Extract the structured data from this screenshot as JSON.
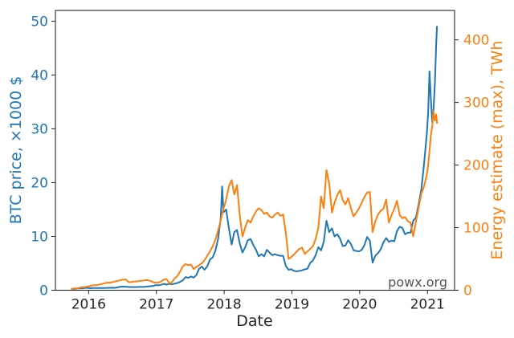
{
  "chart_data": {
    "type": "line",
    "title": "",
    "xlabel": "Date",
    "watermark": "powx.org",
    "grid": false,
    "legend": "none",
    "xlim": [
      2015.51,
      2021.4
    ],
    "x_ticks": [
      2016,
      2017,
      2018,
      2019,
      2020,
      2021
    ],
    "left_axis": {
      "label": "BTC price, ×1000 $",
      "color": "#1f77b4",
      "ticks": [
        0,
        10,
        20,
        30,
        40,
        50
      ],
      "range": [
        0,
        52
      ]
    },
    "right_axis": {
      "label": "Energy estimate (max), TWh",
      "color": "#ff7f0e",
      "ticks": [
        0,
        100,
        200,
        300,
        400
      ],
      "range": [
        0,
        447
      ]
    },
    "tick_color": "#262626",
    "x": [
      2015.75,
      2015.79,
      2015.83,
      2015.87,
      2015.91,
      2015.95,
      2015.99,
      2016.03,
      2016.07,
      2016.11,
      2016.15,
      2016.19,
      2016.23,
      2016.27,
      2016.31,
      2016.35,
      2016.39,
      2016.43,
      2016.47,
      2016.51,
      2016.55,
      2016.59,
      2016.63,
      2016.67,
      2016.71,
      2016.75,
      2016.79,
      2016.83,
      2016.87,
      2016.91,
      2016.95,
      2016.99,
      2017.03,
      2017.07,
      2017.11,
      2017.15,
      2017.19,
      2017.23,
      2017.27,
      2017.31,
      2017.35,
      2017.39,
      2017.43,
      2017.47,
      2017.51,
      2017.55,
      2017.59,
      2017.63,
      2017.67,
      2017.71,
      2017.75,
      2017.79,
      2017.83,
      2017.87,
      2017.91,
      2017.95,
      2017.97,
      2017.99,
      2018.03,
      2018.07,
      2018.11,
      2018.15,
      2018.19,
      2018.23,
      2018.27,
      2018.31,
      2018.35,
      2018.39,
      2018.43,
      2018.47,
      2018.51,
      2018.55,
      2018.59,
      2018.63,
      2018.67,
      2018.71,
      2018.75,
      2018.79,
      2018.83,
      2018.87,
      2018.91,
      2018.95,
      2018.99,
      2019.03,
      2019.07,
      2019.11,
      2019.15,
      2019.19,
      2019.23,
      2019.27,
      2019.31,
      2019.35,
      2019.39,
      2019.43,
      2019.47,
      2019.51,
      2019.55,
      2019.59,
      2019.63,
      2019.67,
      2019.71,
      2019.75,
      2019.79,
      2019.83,
      2019.87,
      2019.91,
      2019.95,
      2019.99,
      2020.03,
      2020.07,
      2020.11,
      2020.15,
      2020.19,
      2020.23,
      2020.27,
      2020.31,
      2020.35,
      2020.39,
      2020.43,
      2020.47,
      2020.51,
      2020.55,
      2020.59,
      2020.63,
      2020.67,
      2020.71,
      2020.75,
      2020.79,
      2020.83,
      2020.87,
      2020.91,
      2020.95,
      2020.99,
      2021.01,
      2021.03,
      2021.05,
      2021.07,
      2021.09,
      2021.11,
      2021.13,
      2021.14
    ],
    "series": [
      {
        "name": "BTC price, ×1000 $",
        "axis": "left",
        "color": "#1f77b4",
        "values": [
          0.24,
          0.26,
          0.31,
          0.38,
          0.35,
          0.43,
          0.43,
          0.38,
          0.4,
          0.42,
          0.41,
          0.42,
          0.42,
          0.44,
          0.45,
          0.46,
          0.45,
          0.53,
          0.66,
          0.67,
          0.66,
          0.6,
          0.59,
          0.58,
          0.59,
          0.61,
          0.61,
          0.64,
          0.71,
          0.74,
          0.78,
          0.96,
          0.91,
          1.02,
          1.18,
          1.05,
          1.2,
          1.1,
          1.22,
          1.35,
          1.55,
          1.85,
          2.45,
          2.3,
          2.55,
          2.35,
          2.8,
          4.0,
          4.4,
          3.8,
          4.4,
          5.7,
          6.1,
          7.3,
          9.5,
          13.5,
          19.3,
          14.5,
          15.0,
          11.5,
          8.5,
          10.8,
          11.2,
          8.7,
          7.0,
          8.0,
          9.3,
          9.5,
          8.4,
          7.5,
          6.3,
          6.7,
          6.3,
          7.5,
          7.0,
          6.5,
          6.7,
          6.5,
          6.4,
          6.4,
          4.5,
          3.8,
          3.9,
          3.6,
          3.5,
          3.6,
          3.7,
          3.9,
          4.0,
          5.1,
          5.5,
          6.5,
          8.0,
          7.4,
          9.0,
          12.9,
          10.8,
          11.5,
          10.0,
          10.4,
          9.6,
          8.2,
          8.3,
          9.3,
          8.6,
          7.4,
          7.3,
          7.2,
          7.5,
          8.4,
          9.9,
          9.2,
          5.1,
          6.4,
          6.9,
          7.6,
          8.9,
          9.7,
          9.0,
          9.2,
          9.1,
          11.0,
          11.8,
          11.6,
          10.4,
          10.7,
          10.7,
          12.9,
          13.5,
          16.0,
          18.8,
          23.5,
          29.0,
          33.0,
          40.7,
          35.5,
          31.2,
          33.5,
          38.5,
          46.0,
          49.0
        ]
      },
      {
        "name": "Energy estimate (max), TWh",
        "axis": "right",
        "color": "#ff7f0e",
        "values": [
          2,
          3,
          3,
          4,
          5,
          5,
          6,
          7,
          8,
          8,
          9,
          10,
          11,
          12,
          12,
          13,
          14,
          15,
          16,
          17,
          17,
          13,
          13,
          14,
          14,
          15,
          15,
          16,
          16,
          15,
          13,
          12,
          12,
          14,
          17,
          18,
          11,
          13,
          19,
          23,
          30,
          38,
          42,
          40,
          41,
          34,
          37,
          40,
          43,
          48,
          55,
          62,
          70,
          80,
          95,
          112,
          122,
          130,
          145,
          166,
          176,
          153,
          168,
          120,
          86,
          100,
          112,
          108,
          118,
          126,
          131,
          128,
          122,
          124,
          118,
          116,
          121,
          124,
          119,
          121,
          92,
          50,
          53,
          57,
          62,
          66,
          68,
          58,
          62,
          66,
          70,
          82,
          100,
          150,
          131,
          192,
          170,
          124,
          140,
          152,
          160,
          144,
          137,
          147,
          131,
          118,
          124,
          131,
          140,
          149,
          156,
          157,
          93,
          110,
          121,
          127,
          130,
          145,
          108,
          120,
          130,
          143,
          120,
          115,
          117,
          110,
          108,
          86,
          110,
          132,
          155,
          166,
          184,
          200,
          222,
          248,
          262,
          286,
          271,
          281,
          267
        ]
      }
    ]
  }
}
